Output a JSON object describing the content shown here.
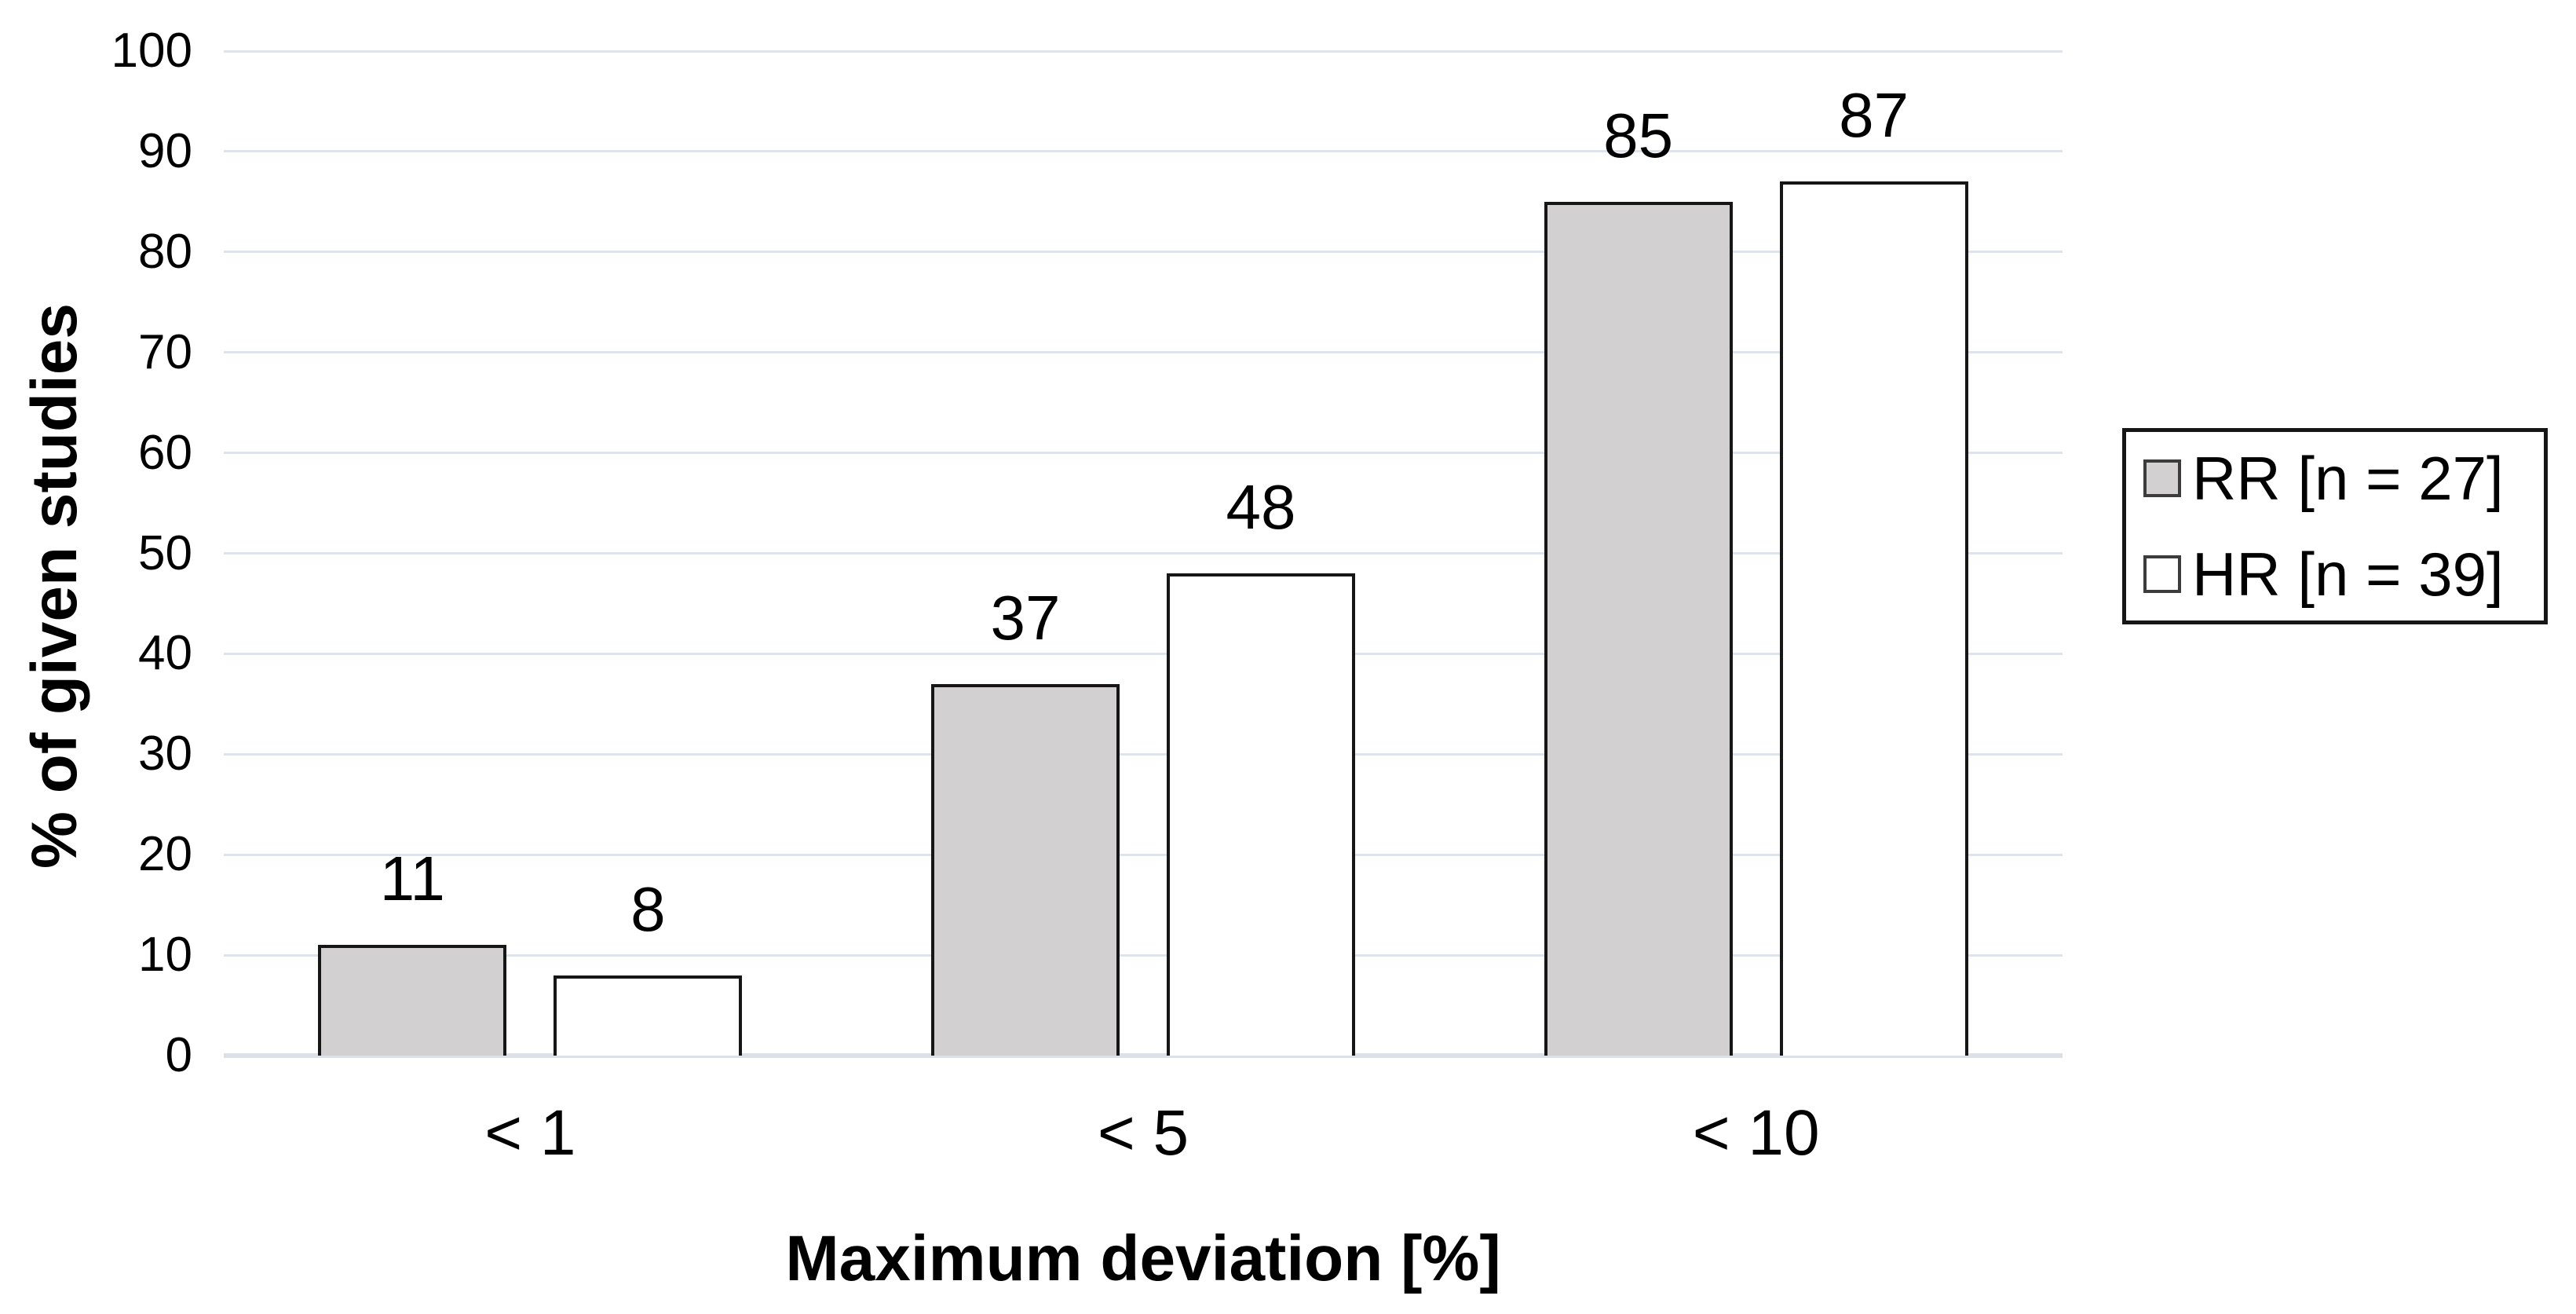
{
  "chart_data": {
    "type": "bar",
    "title": "",
    "xlabel": "Maximum deviation [%]",
    "ylabel": "% of given studies",
    "categories": [
      "< 1",
      "< 5",
      "< 10"
    ],
    "series": [
      {
        "name": "RR [n = 27]",
        "fill": "#d3d0d1",
        "values": [
          11,
          37,
          85
        ]
      },
      {
        "name": "HR [n = 39]",
        "fill": "#ffffff",
        "values": [
          8,
          48,
          87
        ]
      }
    ],
    "ylim": [
      0,
      100
    ],
    "yticks": [
      0,
      10,
      20,
      30,
      40,
      50,
      60,
      70,
      80,
      90,
      100
    ],
    "grid": "horizontal",
    "legend_position": "right",
    "colors": {
      "bar_border": "#161616",
      "gridline": "#dde4ee",
      "axis_line": "#dce1e8",
      "text": "#000000",
      "legend_border": "#161616",
      "background": "#ffffff"
    }
  }
}
